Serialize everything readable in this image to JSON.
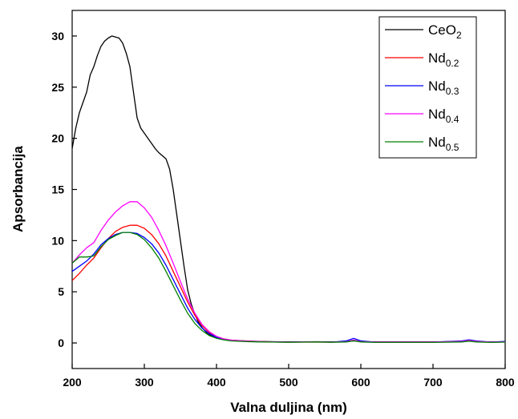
{
  "chart_data": {
    "type": "line",
    "xlabel": "Valna duljina (nm)",
    "ylabel": "Apsorbancija",
    "xlim": [
      200,
      800
    ],
    "ylim": [
      -2.5,
      32.5
    ],
    "xticks": [
      200,
      300,
      400,
      500,
      600,
      700,
      800
    ],
    "yticks": [
      0,
      5,
      10,
      15,
      20,
      25,
      30
    ],
    "grid": false,
    "legend_position": "top-right",
    "series": [
      {
        "name": "CeO",
        "subscript": "2",
        "color": "#000000",
        "points": [
          [
            200,
            19
          ],
          [
            205,
            21
          ],
          [
            210,
            22.5
          ],
          [
            215,
            23.5
          ],
          [
            220,
            24.5
          ],
          [
            225,
            26.2
          ],
          [
            230,
            27
          ],
          [
            235,
            28.1
          ],
          [
            240,
            29
          ],
          [
            245,
            29.5
          ],
          [
            250,
            29.8
          ],
          [
            255,
            30
          ],
          [
            260,
            29.9
          ],
          [
            265,
            29.8
          ],
          [
            270,
            29.3
          ],
          [
            275,
            28.3
          ],
          [
            280,
            27
          ],
          [
            285,
            24.5
          ],
          [
            290,
            22
          ],
          [
            295,
            21
          ],
          [
            300,
            20.5
          ],
          [
            305,
            20
          ],
          [
            310,
            19.5
          ],
          [
            315,
            19
          ],
          [
            320,
            18.6
          ],
          [
            325,
            18.3
          ],
          [
            330,
            18
          ],
          [
            335,
            17
          ],
          [
            340,
            15
          ],
          [
            345,
            12.5
          ],
          [
            350,
            10
          ],
          [
            355,
            7.5
          ],
          [
            360,
            5.2
          ],
          [
            365,
            3.8
          ],
          [
            370,
            2.8
          ],
          [
            375,
            2
          ],
          [
            380,
            1.5
          ],
          [
            385,
            1.1
          ],
          [
            390,
            0.8
          ],
          [
            400,
            0.55
          ],
          [
            410,
            0.38
          ],
          [
            420,
            0.28
          ],
          [
            440,
            0.2
          ],
          [
            460,
            0.15
          ],
          [
            480,
            0.12
          ],
          [
            500,
            0.1
          ],
          [
            520,
            0.11
          ],
          [
            540,
            0.12
          ],
          [
            560,
            0.1
          ],
          [
            580,
            0.12
          ],
          [
            590,
            0.2
          ],
          [
            600,
            0.12
          ],
          [
            620,
            0.1
          ],
          [
            650,
            0.1
          ],
          [
            700,
            0.1
          ],
          [
            740,
            0.15
          ],
          [
            750,
            0.2
          ],
          [
            760,
            0.14
          ],
          [
            780,
            0.1
          ],
          [
            800,
            0.12
          ]
        ]
      },
      {
        "name": "Nd",
        "subscript": "0.2",
        "color": "#ff0000",
        "points": [
          [
            200,
            6.1
          ],
          [
            210,
            6.8
          ],
          [
            220,
            7.6
          ],
          [
            230,
            8.3
          ],
          [
            240,
            9.3
          ],
          [
            250,
            10.2
          ],
          [
            260,
            10.9
          ],
          [
            270,
            11.3
          ],
          [
            280,
            11.5
          ],
          [
            290,
            11.5
          ],
          [
            300,
            11.2
          ],
          [
            310,
            10.6
          ],
          [
            320,
            9.7
          ],
          [
            330,
            8.5
          ],
          [
            340,
            7
          ],
          [
            350,
            5.5
          ],
          [
            360,
            4
          ],
          [
            370,
            2.7
          ],
          [
            380,
            1.7
          ],
          [
            390,
            1
          ],
          [
            400,
            0.6
          ],
          [
            410,
            0.4
          ],
          [
            420,
            0.28
          ],
          [
            440,
            0.18
          ],
          [
            460,
            0.13
          ],
          [
            480,
            0.1
          ],
          [
            500,
            0.08
          ],
          [
            520,
            0.08
          ],
          [
            540,
            0.1
          ],
          [
            560,
            0.08
          ],
          [
            580,
            0.12
          ],
          [
            590,
            0.25
          ],
          [
            600,
            0.12
          ],
          [
            620,
            0.08
          ],
          [
            650,
            0.08
          ],
          [
            700,
            0.08
          ],
          [
            740,
            0.15
          ],
          [
            750,
            0.25
          ],
          [
            760,
            0.15
          ],
          [
            780,
            0.08
          ],
          [
            800,
            0.1
          ]
        ]
      },
      {
        "name": "Nd",
        "subscript": "0.3",
        "color": "#0000ff",
        "points": [
          [
            200,
            7
          ],
          [
            210,
            7.5
          ],
          [
            220,
            8
          ],
          [
            230,
            8.7
          ],
          [
            240,
            9.6
          ],
          [
            250,
            10.2
          ],
          [
            260,
            10.6
          ],
          [
            270,
            10.8
          ],
          [
            280,
            10.8
          ],
          [
            290,
            10.7
          ],
          [
            300,
            10.3
          ],
          [
            310,
            9.7
          ],
          [
            320,
            8.8
          ],
          [
            330,
            7.6
          ],
          [
            340,
            6.2
          ],
          [
            350,
            4.8
          ],
          [
            360,
            3.4
          ],
          [
            370,
            2.3
          ],
          [
            380,
            1.45
          ],
          [
            390,
            0.9
          ],
          [
            400,
            0.55
          ],
          [
            410,
            0.35
          ],
          [
            420,
            0.25
          ],
          [
            440,
            0.16
          ],
          [
            460,
            0.12
          ],
          [
            480,
            0.1
          ],
          [
            500,
            0.08
          ],
          [
            520,
            0.1
          ],
          [
            540,
            0.1
          ],
          [
            560,
            0.08
          ],
          [
            580,
            0.2
          ],
          [
            590,
            0.45
          ],
          [
            600,
            0.2
          ],
          [
            620,
            0.08
          ],
          [
            650,
            0.08
          ],
          [
            700,
            0.08
          ],
          [
            740,
            0.2
          ],
          [
            750,
            0.3
          ],
          [
            760,
            0.2
          ],
          [
            780,
            0.08
          ],
          [
            800,
            0.15
          ]
        ]
      },
      {
        "name": "Nd",
        "subscript": "0.4",
        "color": "#ff00ff",
        "points": [
          [
            200,
            7.8
          ],
          [
            210,
            8.6
          ],
          [
            220,
            9.3
          ],
          [
            230,
            9.8
          ],
          [
            240,
            11
          ],
          [
            250,
            12
          ],
          [
            260,
            12.8
          ],
          [
            270,
            13.4
          ],
          [
            280,
            13.8
          ],
          [
            290,
            13.8
          ],
          [
            300,
            13.2
          ],
          [
            310,
            12.3
          ],
          [
            320,
            11
          ],
          [
            330,
            9.5
          ],
          [
            340,
            7.8
          ],
          [
            350,
            6
          ],
          [
            360,
            4.3
          ],
          [
            370,
            2.9
          ],
          [
            380,
            1.8
          ],
          [
            390,
            1.1
          ],
          [
            400,
            0.65
          ],
          [
            410,
            0.4
          ],
          [
            420,
            0.28
          ],
          [
            440,
            0.18
          ],
          [
            460,
            0.13
          ],
          [
            480,
            0.1
          ],
          [
            500,
            0.08
          ],
          [
            520,
            0.1
          ],
          [
            540,
            0.1
          ],
          [
            560,
            0.08
          ],
          [
            580,
            0.12
          ],
          [
            590,
            0.3
          ],
          [
            600,
            0.12
          ],
          [
            620,
            0.08
          ],
          [
            650,
            0.08
          ],
          [
            700,
            0.08
          ],
          [
            740,
            0.15
          ],
          [
            750,
            0.25
          ],
          [
            760,
            0.15
          ],
          [
            780,
            0.08
          ],
          [
            800,
            0.1
          ]
        ]
      },
      {
        "name": "Nd",
        "subscript": "0.5",
        "color": "#008000",
        "points": [
          [
            200,
            7.8
          ],
          [
            210,
            8.4
          ],
          [
            220,
            8.4
          ],
          [
            230,
            8.5
          ],
          [
            240,
            9.4
          ],
          [
            250,
            10.1
          ],
          [
            260,
            10.5
          ],
          [
            270,
            10.8
          ],
          [
            280,
            10.8
          ],
          [
            290,
            10.6
          ],
          [
            300,
            10.1
          ],
          [
            310,
            9.3
          ],
          [
            320,
            8.3
          ],
          [
            330,
            7
          ],
          [
            340,
            5.6
          ],
          [
            350,
            4.2
          ],
          [
            360,
            2.9
          ],
          [
            370,
            1.9
          ],
          [
            380,
            1.2
          ],
          [
            390,
            0.72
          ],
          [
            400,
            0.45
          ],
          [
            410,
            0.3
          ],
          [
            420,
            0.2
          ],
          [
            440,
            0.13
          ],
          [
            460,
            0.1
          ],
          [
            480,
            0.08
          ],
          [
            500,
            0.07
          ],
          [
            520,
            0.08
          ],
          [
            540,
            0.1
          ],
          [
            560,
            0.07
          ],
          [
            580,
            0.1
          ],
          [
            590,
            0.22
          ],
          [
            600,
            0.1
          ],
          [
            620,
            0.05
          ],
          [
            650,
            0.05
          ],
          [
            700,
            0.05
          ],
          [
            740,
            0.1
          ],
          [
            750,
            0.18
          ],
          [
            760,
            0.1
          ],
          [
            780,
            0.05
          ],
          [
            800,
            0.08
          ]
        ]
      }
    ]
  }
}
